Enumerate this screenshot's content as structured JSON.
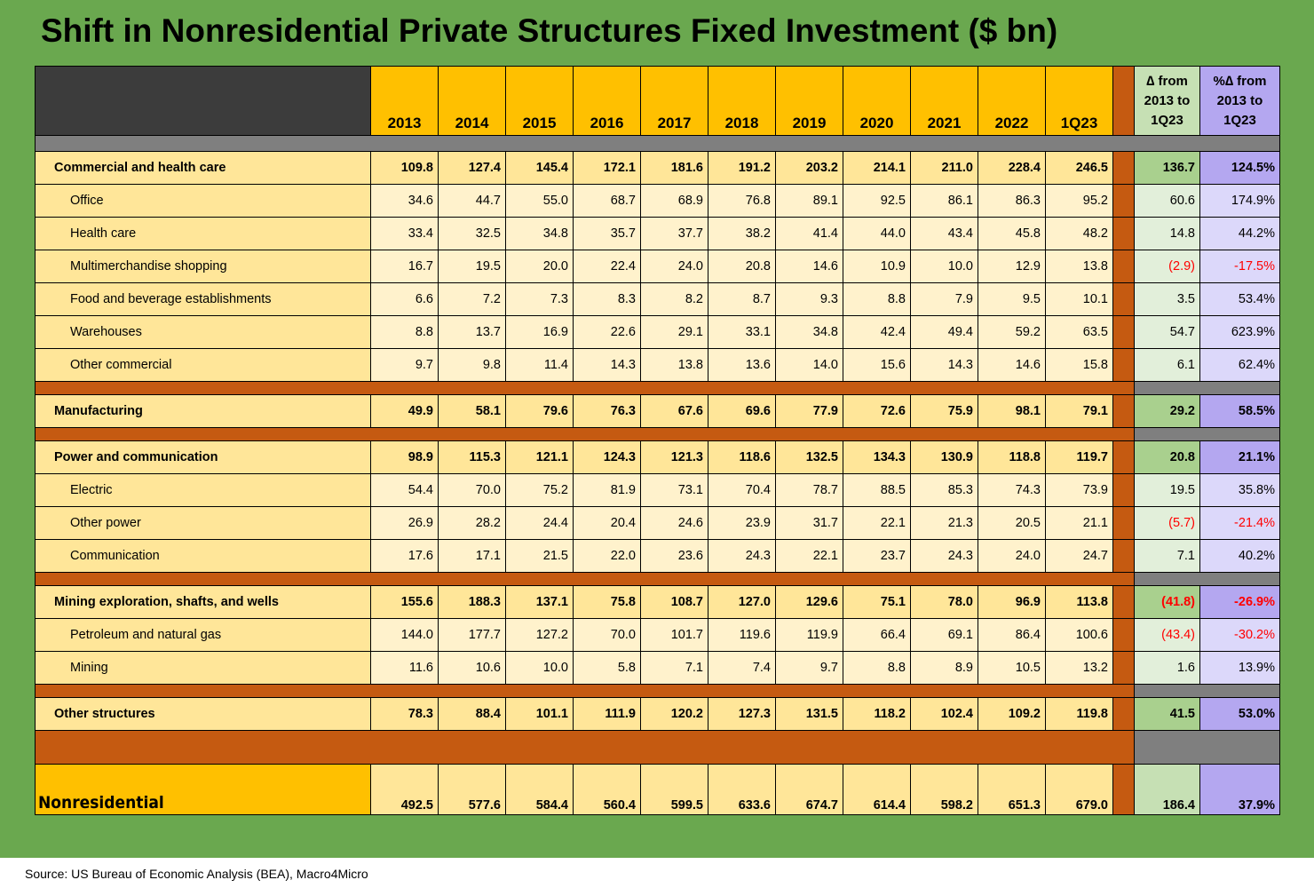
{
  "title": "Shift in Nonresidential Private Structures Fixed Investment ($ bn)",
  "source": "Source: US Bureau of Economic Analysis (BEA), Macro4Micro",
  "headers": {
    "years": [
      "2013",
      "2014",
      "2015",
      "2016",
      "2017",
      "2018",
      "2019",
      "2020",
      "2021",
      "2022",
      "1Q23"
    ],
    "change": "∆ from 2013 to 1Q23",
    "pct_change": "%∆ from 2013 to 1Q23"
  },
  "groups": [
    {
      "rows": [
        {
          "kind": "major",
          "label": "Commercial and health care",
          "values": [
            "109.8",
            "127.4",
            "145.4",
            "172.1",
            "181.6",
            "191.2",
            "203.2",
            "214.1",
            "211.0",
            "228.4",
            "246.5"
          ],
          "change": "136.7",
          "pct": "124.5%"
        },
        {
          "kind": "sub",
          "label": "Office",
          "values": [
            "34.6",
            "44.7",
            "55.0",
            "68.7",
            "68.9",
            "76.8",
            "89.1",
            "92.5",
            "86.1",
            "86.3",
            "95.2"
          ],
          "change": "60.6",
          "pct": "174.9%"
        },
        {
          "kind": "sub",
          "label": "Health care",
          "values": [
            "33.4",
            "32.5",
            "34.8",
            "35.7",
            "37.7",
            "38.2",
            "41.4",
            "44.0",
            "43.4",
            "45.8",
            "48.2"
          ],
          "change": "14.8",
          "pct": "44.2%"
        },
        {
          "kind": "sub",
          "label": "Multimerchandise shopping",
          "values": [
            "16.7",
            "19.5",
            "20.0",
            "22.4",
            "24.0",
            "20.8",
            "14.6",
            "10.9",
            "10.0",
            "12.9",
            "13.8"
          ],
          "change": "(2.9)",
          "pct": "-17.5%",
          "negative": true
        },
        {
          "kind": "sub",
          "label": "Food and beverage establishments",
          "values": [
            "6.6",
            "7.2",
            "7.3",
            "8.3",
            "8.2",
            "8.7",
            "9.3",
            "8.8",
            "7.9",
            "9.5",
            "10.1"
          ],
          "change": "3.5",
          "pct": "53.4%"
        },
        {
          "kind": "sub",
          "label": "Warehouses",
          "values": [
            "8.8",
            "13.7",
            "16.9",
            "22.6",
            "29.1",
            "33.1",
            "34.8",
            "42.4",
            "49.4",
            "59.2",
            "63.5"
          ],
          "change": "54.7",
          "pct": "623.9%"
        },
        {
          "kind": "sub",
          "label": "Other commercial",
          "values": [
            "9.7",
            "9.8",
            "11.4",
            "14.3",
            "13.8",
            "13.6",
            "14.0",
            "15.6",
            "14.3",
            "14.6",
            "15.8"
          ],
          "change": "6.1",
          "pct": "62.4%"
        }
      ]
    },
    {
      "rows": [
        {
          "kind": "major",
          "label": "Manufacturing",
          "values": [
            "49.9",
            "58.1",
            "79.6",
            "76.3",
            "67.6",
            "69.6",
            "77.9",
            "72.6",
            "75.9",
            "98.1",
            "79.1"
          ],
          "change": "29.2",
          "pct": "58.5%"
        }
      ]
    },
    {
      "rows": [
        {
          "kind": "major",
          "label": "Power and communication",
          "values": [
            "98.9",
            "115.3",
            "121.1",
            "124.3",
            "121.3",
            "118.6",
            "132.5",
            "134.3",
            "130.9",
            "118.8",
            "119.7"
          ],
          "change": "20.8",
          "pct": "21.1%"
        },
        {
          "kind": "sub",
          "label": "Electric",
          "values": [
            "54.4",
            "70.0",
            "75.2",
            "81.9",
            "73.1",
            "70.4",
            "78.7",
            "88.5",
            "85.3",
            "74.3",
            "73.9"
          ],
          "change": "19.5",
          "pct": "35.8%"
        },
        {
          "kind": "sub",
          "label": "Other power",
          "values": [
            "26.9",
            "28.2",
            "24.4",
            "20.4",
            "24.6",
            "23.9",
            "31.7",
            "22.1",
            "21.3",
            "20.5",
            "21.1"
          ],
          "change": "(5.7)",
          "pct": "-21.4%",
          "negative": true
        },
        {
          "kind": "sub",
          "label": "Communication",
          "values": [
            "17.6",
            "17.1",
            "21.5",
            "22.0",
            "23.6",
            "24.3",
            "22.1",
            "23.7",
            "24.3",
            "24.0",
            "24.7"
          ],
          "change": "7.1",
          "pct": "40.2%"
        }
      ]
    },
    {
      "rows": [
        {
          "kind": "major",
          "label": "Mining exploration, shafts, and wells",
          "values": [
            "155.6",
            "188.3",
            "137.1",
            "75.8",
            "108.7",
            "127.0",
            "129.6",
            "75.1",
            "78.0",
            "96.9",
            "113.8"
          ],
          "change": "(41.8)",
          "pct": "-26.9%",
          "negative": true
        },
        {
          "kind": "sub",
          "label": "Petroleum and natural gas",
          "values": [
            "144.0",
            "177.7",
            "127.2",
            "70.0",
            "101.7",
            "119.6",
            "119.9",
            "66.4",
            "69.1",
            "86.4",
            "100.6"
          ],
          "change": "(43.4)",
          "pct": "-30.2%",
          "negative": true
        },
        {
          "kind": "sub",
          "label": "Mining",
          "values": [
            "11.6",
            "10.6",
            "10.0",
            "5.8",
            "7.1",
            "7.4",
            "9.7",
            "8.8",
            "8.9",
            "10.5",
            "13.2"
          ],
          "change": "1.6",
          "pct": "13.9%"
        }
      ]
    },
    {
      "rows": [
        {
          "kind": "major",
          "label": "Other structures",
          "values": [
            "78.3",
            "88.4",
            "101.1",
            "111.9",
            "120.2",
            "127.3",
            "131.5",
            "118.2",
            "102.4",
            "109.2",
            "119.8"
          ],
          "change": "41.5",
          "pct": "53.0%"
        }
      ]
    }
  ],
  "total": {
    "label": "Nonresidential",
    "values": [
      "492.5",
      "577.6",
      "584.4",
      "560.4",
      "599.5",
      "633.6",
      "674.7",
      "614.4",
      "598.2",
      "651.3",
      "679.0"
    ],
    "change": "186.4",
    "pct": "37.9%"
  },
  "colors": {
    "background": "#6aa84f",
    "year_header": "#ffc000",
    "major_row": "#ffe699",
    "sub_row": "#fff2cc",
    "separator": "#c55a11",
    "change_column": "#c6e0b4",
    "pct_column": "#b4a7f0",
    "negative": "#ff0000"
  }
}
